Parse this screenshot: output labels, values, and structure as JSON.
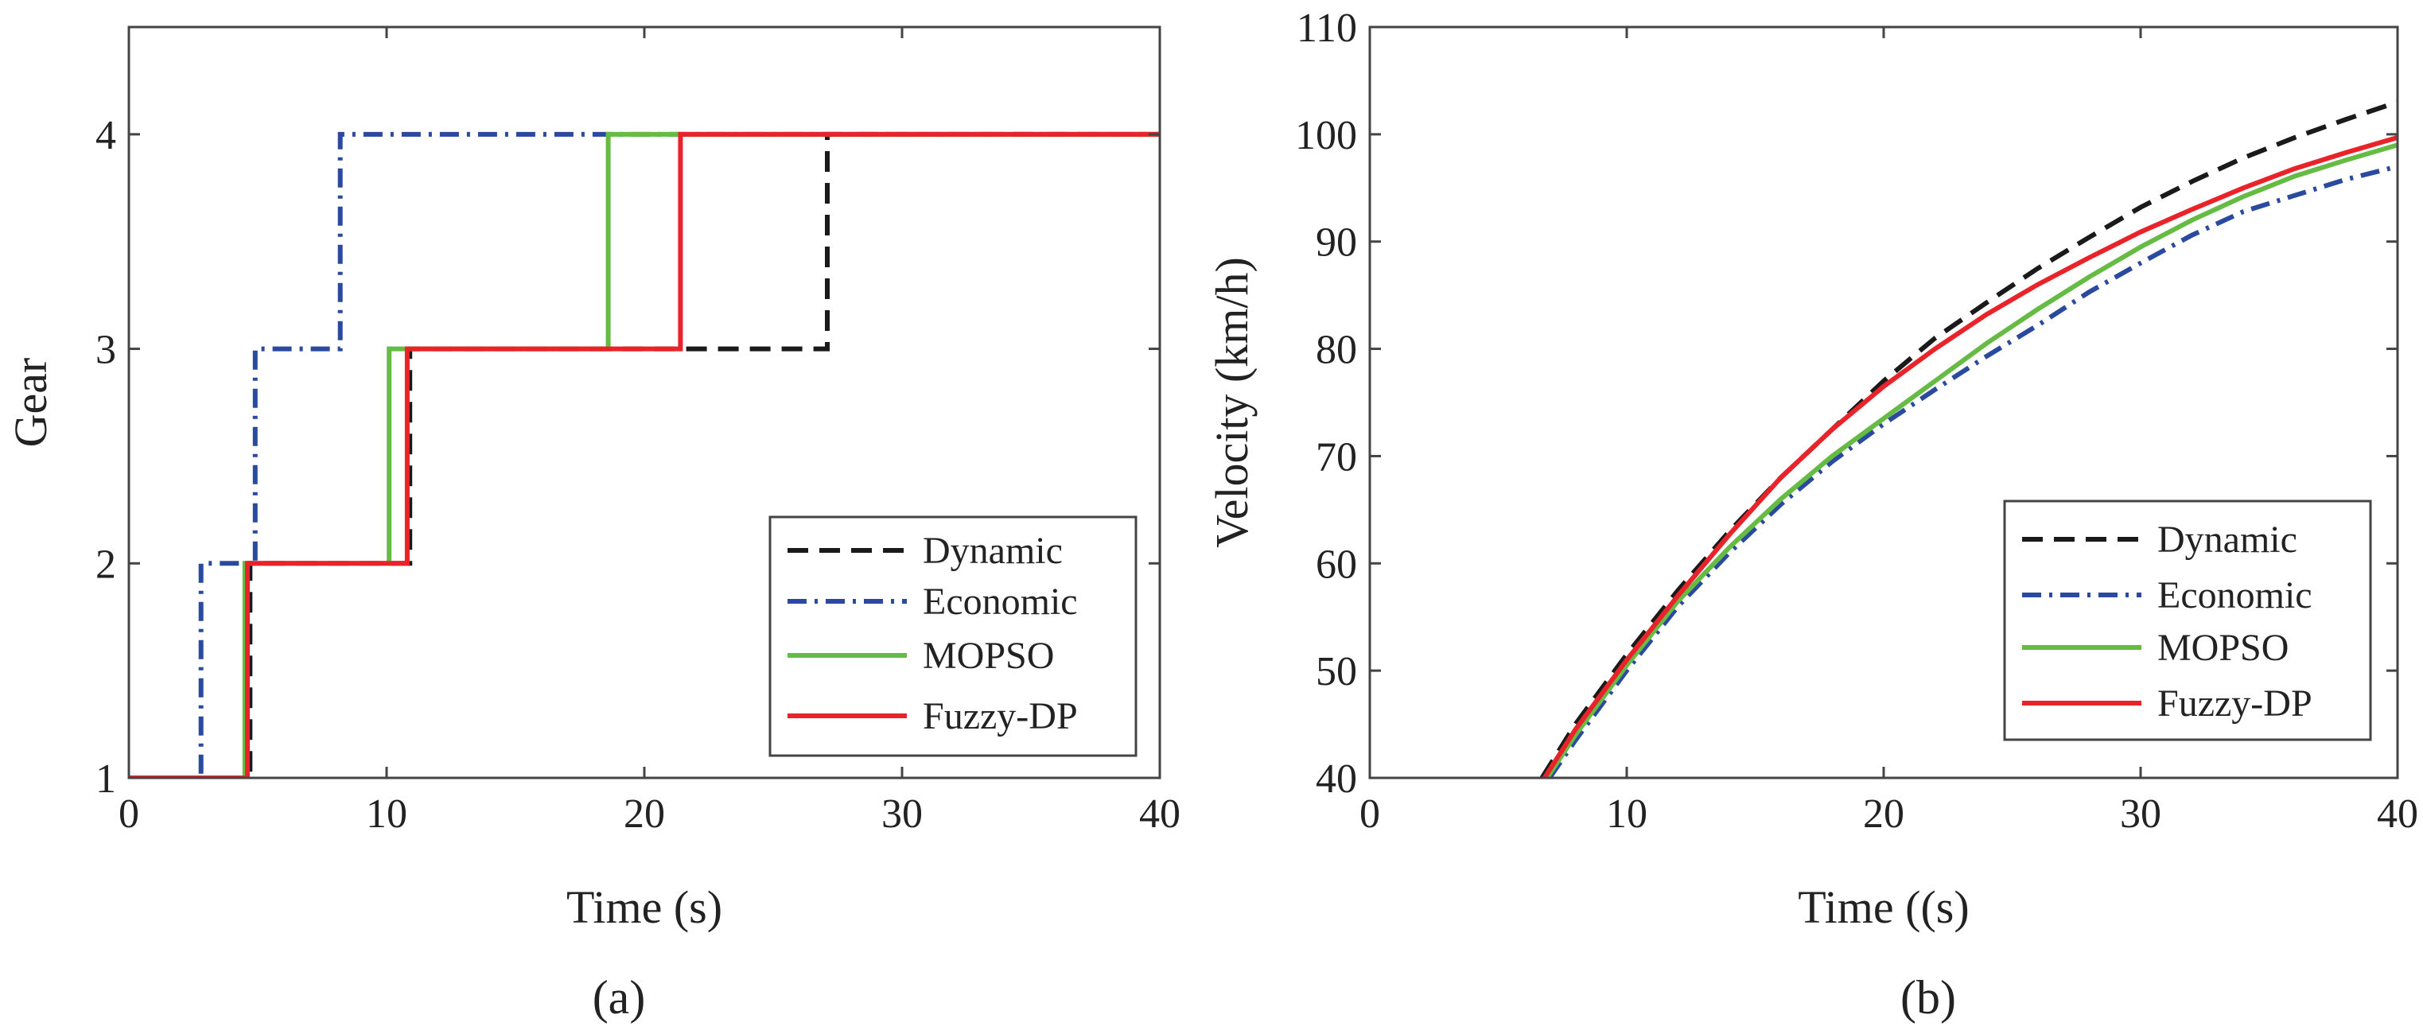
{
  "figure": {
    "panel_labels": [
      "(a)",
      "(b)"
    ]
  },
  "chart_data": [
    {
      "type": "line",
      "panel": "(a)",
      "title": "",
      "xlabel": "Time (s)",
      "ylabel": "Gear",
      "xlim": [
        0,
        40
      ],
      "ylim": [
        1,
        4.5
      ],
      "xticks": [
        0,
        10,
        20,
        30,
        40
      ],
      "yticks": [
        1,
        2,
        3,
        4
      ],
      "grid": false,
      "legend_position": "bottom-right",
      "series": [
        {
          "name": "Dynamic",
          "color": "#1a1a1a",
          "style": "dashed",
          "x": [
            0,
            4.7,
            4.7,
            10.9,
            10.9,
            27.1,
            27.1,
            40
          ],
          "y": [
            1,
            1,
            2,
            2,
            3,
            3,
            4,
            4
          ]
        },
        {
          "name": "Economic",
          "color": "#2a4aa0",
          "style": "dashdot",
          "x": [
            0,
            2.8,
            2.8,
            4.9,
            4.9,
            8.2,
            8.2,
            40
          ],
          "y": [
            1,
            1,
            2,
            2,
            3,
            3,
            4,
            4
          ]
        },
        {
          "name": "MOPSO",
          "color": "#66bb44",
          "style": "solid",
          "x": [
            0,
            4.5,
            4.5,
            10.1,
            10.1,
            18.6,
            18.6,
            40
          ],
          "y": [
            1,
            1,
            2,
            2,
            3,
            3,
            4,
            4
          ]
        },
        {
          "name": "Fuzzy-DP",
          "color": "#e8242a",
          "style": "solid",
          "x": [
            0,
            4.6,
            4.6,
            10.8,
            10.8,
            21.4,
            21.4,
            40
          ],
          "y": [
            1,
            1,
            2,
            2,
            3,
            3,
            4,
            4
          ]
        }
      ]
    },
    {
      "type": "line",
      "panel": "(b)",
      "title": "",
      "xlabel": "Time ((s)",
      "ylabel": "Velocity (km/h)",
      "xlim": [
        0,
        40
      ],
      "ylim": [
        40,
        110
      ],
      "xticks": [
        0,
        10,
        20,
        30,
        40
      ],
      "yticks": [
        40,
        50,
        60,
        70,
        80,
        90,
        100,
        110
      ],
      "grid": false,
      "legend_position": "bottom-right",
      "series": [
        {
          "name": "Dynamic",
          "color": "#1a1a1a",
          "style": "dashed",
          "x": [
            6.7,
            8,
            10,
            12,
            14,
            16,
            18,
            20,
            22,
            24,
            26,
            28,
            30,
            32,
            34,
            36,
            38,
            40
          ],
          "y": [
            40,
            45,
            51.5,
            57.5,
            63,
            68,
            72.5,
            77,
            81,
            84.3,
            87.5,
            90.4,
            93.2,
            95.6,
            97.8,
            99.7,
            101.4,
            103
          ]
        },
        {
          "name": "Economic",
          "color": "#2a4aa0",
          "style": "dashdot",
          "x": [
            7,
            8,
            10,
            12,
            14,
            16,
            18,
            20,
            22,
            24,
            26,
            28,
            30,
            32,
            34,
            36,
            38,
            40
          ],
          "y": [
            40,
            43.5,
            50,
            56,
            61,
            65.5,
            69.5,
            73,
            76.2,
            79.3,
            82.2,
            85.3,
            88,
            90.6,
            92.8,
            94.3,
            95.8,
            97
          ]
        },
        {
          "name": "MOPSO",
          "color": "#66bb44",
          "style": "solid",
          "x": [
            6.9,
            8,
            10,
            12,
            14,
            16,
            18,
            20,
            22,
            24,
            26,
            28,
            30,
            32,
            34,
            36,
            38,
            40
          ],
          "y": [
            40,
            44,
            50.5,
            56.5,
            61.5,
            66,
            70,
            73.5,
            77,
            80.5,
            83.7,
            86.7,
            89.5,
            92,
            94.2,
            96.1,
            97.6,
            99
          ]
        },
        {
          "name": "Fuzzy-DP",
          "color": "#e8242a",
          "style": "solid",
          "x": [
            6.8,
            8,
            10,
            12,
            14,
            16,
            18,
            20,
            22,
            24,
            26,
            28,
            30,
            32,
            34,
            36,
            38,
            40
          ],
          "y": [
            40,
            44.5,
            51,
            57,
            62.7,
            68,
            72.5,
            76.5,
            80,
            83.2,
            86,
            88.5,
            90.9,
            93,
            95,
            96.8,
            98.3,
            99.7
          ]
        }
      ]
    }
  ]
}
